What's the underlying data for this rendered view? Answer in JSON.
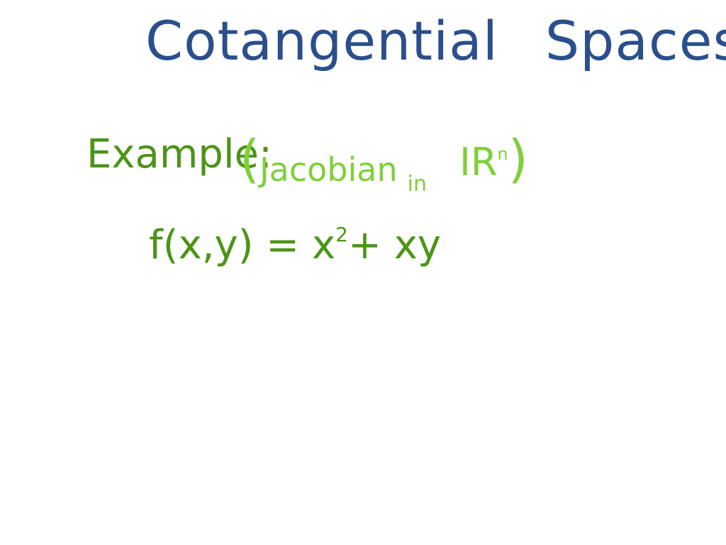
{
  "title": {
    "word1": "Cotangential",
    "word2": "Spaces"
  },
  "example": {
    "label": "Example:",
    "note_open": "(",
    "note_text": "Jacobian",
    "note_in": "in",
    "note_space": "IR",
    "note_sup": "n",
    "note_close": ")"
  },
  "formula": {
    "lhs": "f(x,y) = x",
    "exponent": "2",
    "rhs": "+ xy"
  },
  "colors": {
    "title": "#2a4f8c",
    "dark_green": "#4c9417",
    "light_green": "#7fcf3a",
    "background": "#ffffff"
  }
}
